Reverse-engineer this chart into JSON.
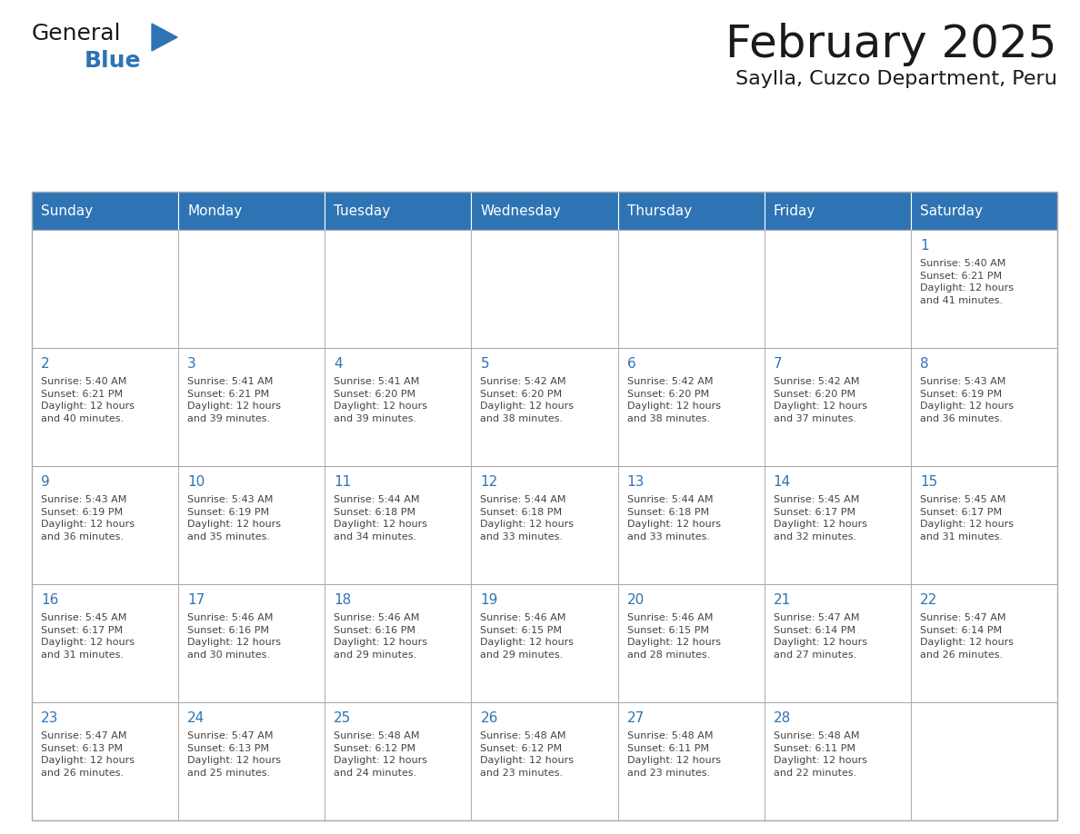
{
  "title": "February 2025",
  "subtitle": "Saylla, Cuzco Department, Peru",
  "header_bg": "#2E74B5",
  "header_text_color": "#FFFFFF",
  "cell_bg": "#FFFFFF",
  "cell_border_color": "#AAAAAA",
  "day_number_color": "#2E74B5",
  "body_text_color": "#444444",
  "weekdays": [
    "Sunday",
    "Monday",
    "Tuesday",
    "Wednesday",
    "Thursday",
    "Friday",
    "Saturday"
  ],
  "title_color": "#1a1a1a",
  "subtitle_color": "#1a1a1a",
  "logo_general_color": "#1a1a1a",
  "logo_blue_color": "#2E74B5",
  "weeks": [
    [
      {
        "day": null,
        "info": ""
      },
      {
        "day": null,
        "info": ""
      },
      {
        "day": null,
        "info": ""
      },
      {
        "day": null,
        "info": ""
      },
      {
        "day": null,
        "info": ""
      },
      {
        "day": null,
        "info": ""
      },
      {
        "day": 1,
        "info": "Sunrise: 5:40 AM\nSunset: 6:21 PM\nDaylight: 12 hours\nand 41 minutes."
      }
    ],
    [
      {
        "day": 2,
        "info": "Sunrise: 5:40 AM\nSunset: 6:21 PM\nDaylight: 12 hours\nand 40 minutes."
      },
      {
        "day": 3,
        "info": "Sunrise: 5:41 AM\nSunset: 6:21 PM\nDaylight: 12 hours\nand 39 minutes."
      },
      {
        "day": 4,
        "info": "Sunrise: 5:41 AM\nSunset: 6:20 PM\nDaylight: 12 hours\nand 39 minutes."
      },
      {
        "day": 5,
        "info": "Sunrise: 5:42 AM\nSunset: 6:20 PM\nDaylight: 12 hours\nand 38 minutes."
      },
      {
        "day": 6,
        "info": "Sunrise: 5:42 AM\nSunset: 6:20 PM\nDaylight: 12 hours\nand 38 minutes."
      },
      {
        "day": 7,
        "info": "Sunrise: 5:42 AM\nSunset: 6:20 PM\nDaylight: 12 hours\nand 37 minutes."
      },
      {
        "day": 8,
        "info": "Sunrise: 5:43 AM\nSunset: 6:19 PM\nDaylight: 12 hours\nand 36 minutes."
      }
    ],
    [
      {
        "day": 9,
        "info": "Sunrise: 5:43 AM\nSunset: 6:19 PM\nDaylight: 12 hours\nand 36 minutes."
      },
      {
        "day": 10,
        "info": "Sunrise: 5:43 AM\nSunset: 6:19 PM\nDaylight: 12 hours\nand 35 minutes."
      },
      {
        "day": 11,
        "info": "Sunrise: 5:44 AM\nSunset: 6:18 PM\nDaylight: 12 hours\nand 34 minutes."
      },
      {
        "day": 12,
        "info": "Sunrise: 5:44 AM\nSunset: 6:18 PM\nDaylight: 12 hours\nand 33 minutes."
      },
      {
        "day": 13,
        "info": "Sunrise: 5:44 AM\nSunset: 6:18 PM\nDaylight: 12 hours\nand 33 minutes."
      },
      {
        "day": 14,
        "info": "Sunrise: 5:45 AM\nSunset: 6:17 PM\nDaylight: 12 hours\nand 32 minutes."
      },
      {
        "day": 15,
        "info": "Sunrise: 5:45 AM\nSunset: 6:17 PM\nDaylight: 12 hours\nand 31 minutes."
      }
    ],
    [
      {
        "day": 16,
        "info": "Sunrise: 5:45 AM\nSunset: 6:17 PM\nDaylight: 12 hours\nand 31 minutes."
      },
      {
        "day": 17,
        "info": "Sunrise: 5:46 AM\nSunset: 6:16 PM\nDaylight: 12 hours\nand 30 minutes."
      },
      {
        "day": 18,
        "info": "Sunrise: 5:46 AM\nSunset: 6:16 PM\nDaylight: 12 hours\nand 29 minutes."
      },
      {
        "day": 19,
        "info": "Sunrise: 5:46 AM\nSunset: 6:15 PM\nDaylight: 12 hours\nand 29 minutes."
      },
      {
        "day": 20,
        "info": "Sunrise: 5:46 AM\nSunset: 6:15 PM\nDaylight: 12 hours\nand 28 minutes."
      },
      {
        "day": 21,
        "info": "Sunrise: 5:47 AM\nSunset: 6:14 PM\nDaylight: 12 hours\nand 27 minutes."
      },
      {
        "day": 22,
        "info": "Sunrise: 5:47 AM\nSunset: 6:14 PM\nDaylight: 12 hours\nand 26 minutes."
      }
    ],
    [
      {
        "day": 23,
        "info": "Sunrise: 5:47 AM\nSunset: 6:13 PM\nDaylight: 12 hours\nand 26 minutes."
      },
      {
        "day": 24,
        "info": "Sunrise: 5:47 AM\nSunset: 6:13 PM\nDaylight: 12 hours\nand 25 minutes."
      },
      {
        "day": 25,
        "info": "Sunrise: 5:48 AM\nSunset: 6:12 PM\nDaylight: 12 hours\nand 24 minutes."
      },
      {
        "day": 26,
        "info": "Sunrise: 5:48 AM\nSunset: 6:12 PM\nDaylight: 12 hours\nand 23 minutes."
      },
      {
        "day": 27,
        "info": "Sunrise: 5:48 AM\nSunset: 6:11 PM\nDaylight: 12 hours\nand 23 minutes."
      },
      {
        "day": 28,
        "info": "Sunrise: 5:48 AM\nSunset: 6:11 PM\nDaylight: 12 hours\nand 22 minutes."
      },
      {
        "day": null,
        "info": ""
      }
    ]
  ]
}
